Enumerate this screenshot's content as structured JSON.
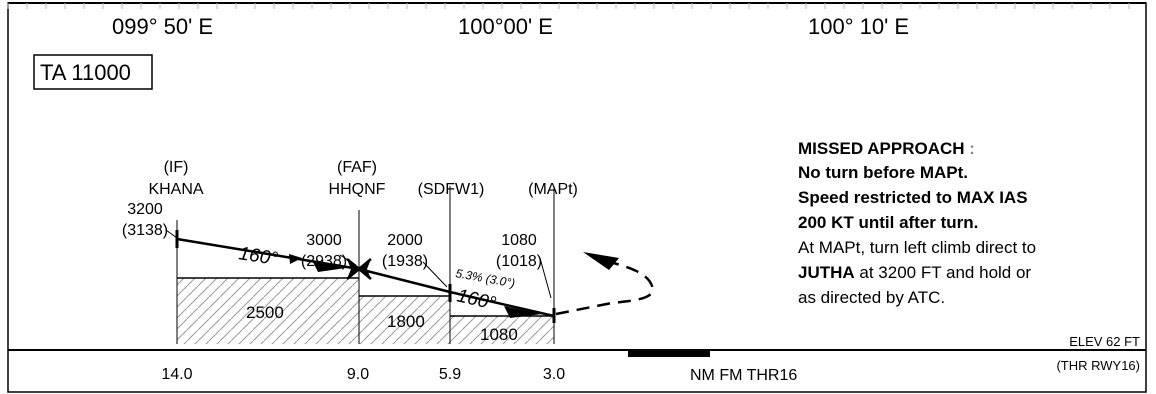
{
  "longitudes": [
    "099° 50' E",
    "100°00' E",
    "100° 10' E"
  ],
  "transition_altitude": "TA 11000",
  "fixes": [
    {
      "role": "(IF)",
      "name": "KHANA",
      "distance": "14.0",
      "altitude": "3200",
      "height": "(3138)"
    },
    {
      "role": "(FAF)",
      "name": "HHQNF",
      "distance": "9.0",
      "altitude": "3000",
      "height": "(2938)"
    },
    {
      "role": "",
      "name": "(SDFW1)",
      "distance": "5.9",
      "altitude": "2000",
      "height": "(1938)"
    },
    {
      "role": "",
      "name": "(MAPt)",
      "distance": "3.0",
      "altitude": "1080",
      "height": "(1018)"
    }
  ],
  "segment_tracks": [
    "160°",
    "160°"
  ],
  "descent_gradient": "5.3% (3.0°)",
  "minimum_altitudes": [
    "2500",
    "1800",
    "1080"
  ],
  "distance_unit": "NM FM THR16",
  "elevation": {
    "line1": "ELEV 62 FT",
    "line2": "(THR RWY16)"
  },
  "missed_approach": {
    "title": "MISSED APPROACH",
    "colon": ":",
    "line1": "No turn before MAPt.",
    "line2": "Speed restricted to MAX IAS",
    "line3": "200 KT until after turn.",
    "line4": "At MAPt, turn left climb direct to",
    "line5_fix": "JUTHA",
    "line5_rest": " at 3200 FT and hold or",
    "line6": "as directed by ATC."
  },
  "colors": {
    "ink": "#000000",
    "hatch": "#9a9a9a",
    "scale_tick": "#bbbbbb"
  }
}
